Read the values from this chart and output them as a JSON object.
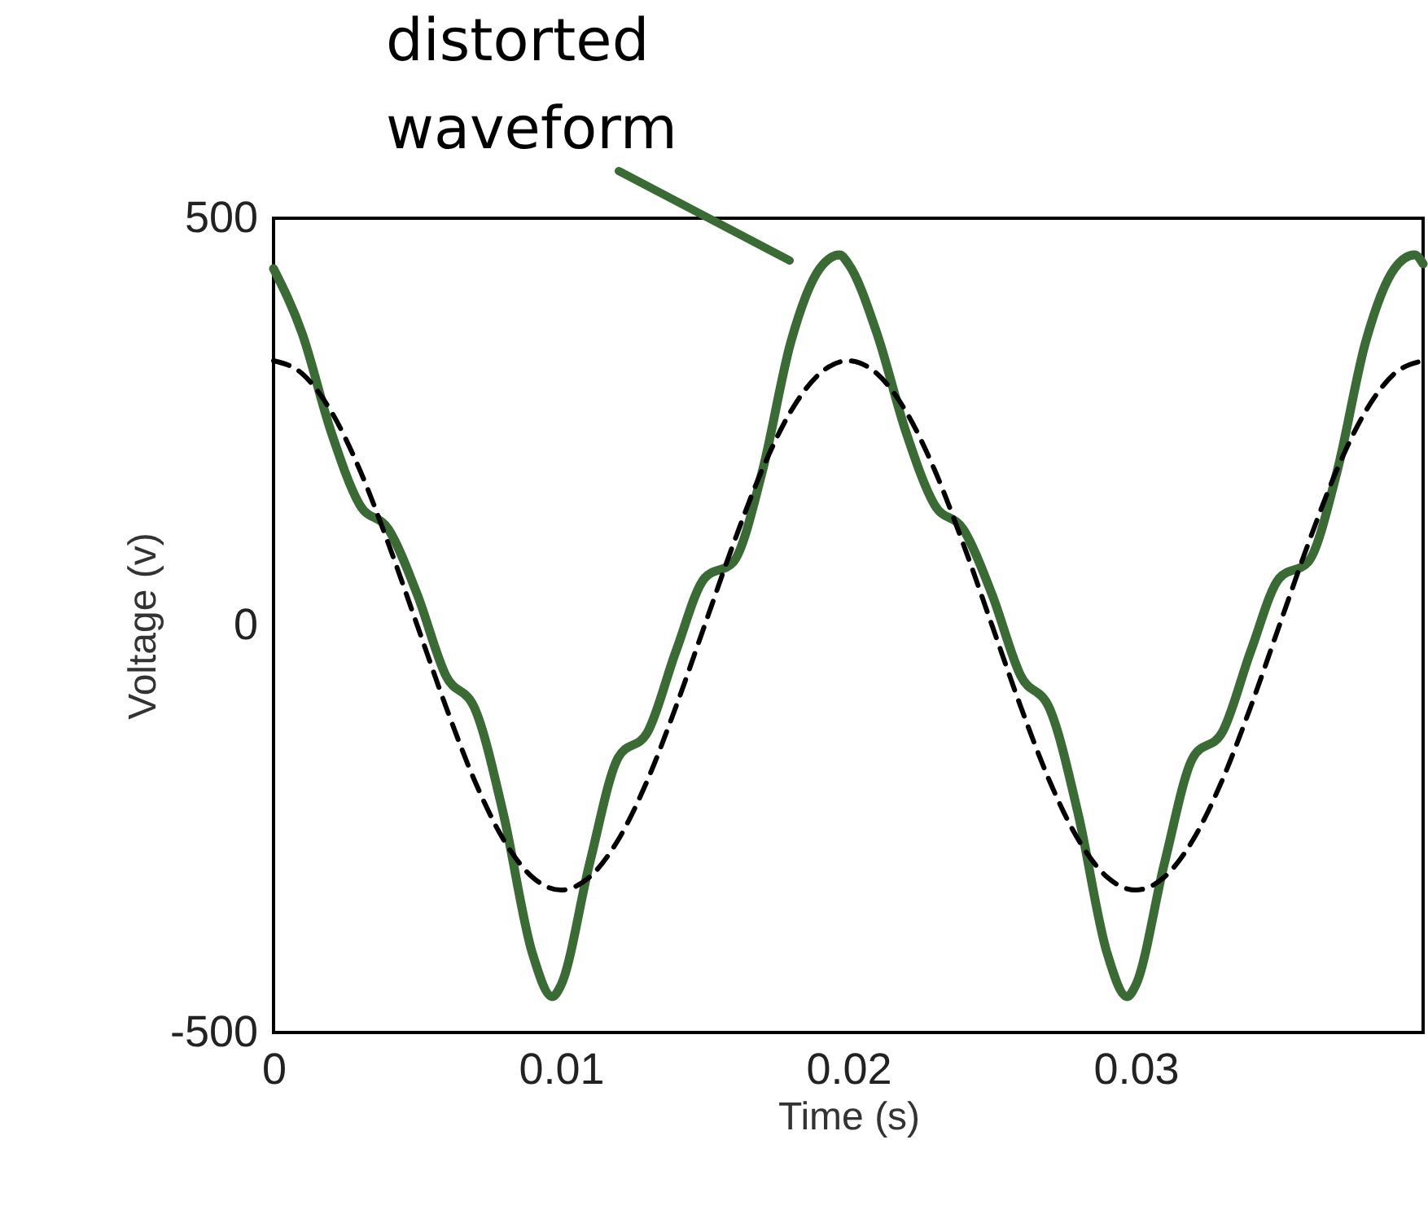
{
  "chart_data": {
    "type": "line",
    "xlabel": "Time (s)",
    "ylabel": "Voltage (v)",
    "xlim": [
      0,
      0.04
    ],
    "ylim": [
      -500,
      500
    ],
    "xticks": [
      0,
      0.01,
      0.02,
      0.03
    ],
    "yticks": [
      -500,
      0,
      500
    ],
    "series": [
      {
        "color": "#3a6b35",
        "line_style": "solid",
        "x": [
          0,
          0.001,
          0.002,
          0.003,
          0.004,
          0.005,
          0.006,
          0.007,
          0.008,
          0.009,
          0.0097,
          0.01,
          0.011,
          0.012,
          0.013,
          0.014,
          0.015,
          0.016,
          0.017,
          0.018,
          0.019,
          0.0197,
          0.02,
          0.021,
          0.022,
          0.023,
          0.024,
          0.025,
          0.026,
          0.027,
          0.028,
          0.029,
          0.0297,
          0.03,
          0.031,
          0.032,
          0.033,
          0.034,
          0.035,
          0.036,
          0.037,
          0.038,
          0.039,
          0.0397,
          0.04
        ],
        "values": [
          438,
          358,
          238,
          148,
          118,
          38,
          -62,
          -102,
          -232,
          -402,
          -456,
          -442,
          -292,
          -162,
          -132,
          -32,
          58,
          78,
          188,
          348,
          438,
          455,
          444,
          358,
          238,
          148,
          118,
          38,
          -62,
          -102,
          -232,
          -402,
          -456,
          -442,
          -292,
          -162,
          -132,
          -32,
          58,
          78,
          188,
          348,
          438,
          455,
          444
        ]
      },
      {
        "color": "#000000",
        "line_style": "dashed",
        "x": [
          0,
          0.001,
          0.002,
          0.003,
          0.004,
          0.005,
          0.006,
          0.007,
          0.008,
          0.009,
          0.01,
          0.011,
          0.012,
          0.013,
          0.014,
          0.015,
          0.016,
          0.017,
          0.018,
          0.019,
          0.02,
          0.021,
          0.022,
          0.023,
          0.024,
          0.025,
          0.026,
          0.027,
          0.028,
          0.029,
          0.03,
          0.031,
          0.032,
          0.033,
          0.034,
          0.035,
          0.036,
          0.037,
          0.038,
          0.039,
          0.04
        ],
        "values": [
          325,
          309,
          263,
          191,
          100,
          0,
          -100,
          -191,
          -263,
          -309,
          -325,
          -309,
          -263,
          -191,
          -100,
          0,
          100,
          191,
          263,
          309,
          325,
          309,
          263,
          191,
          100,
          0,
          -100,
          -191,
          -263,
          -309,
          -325,
          -309,
          -263,
          -191,
          -100,
          0,
          100,
          191,
          263,
          309,
          325
        ]
      }
    ],
    "annotations": [
      "distorted\nwaveform"
    ]
  }
}
